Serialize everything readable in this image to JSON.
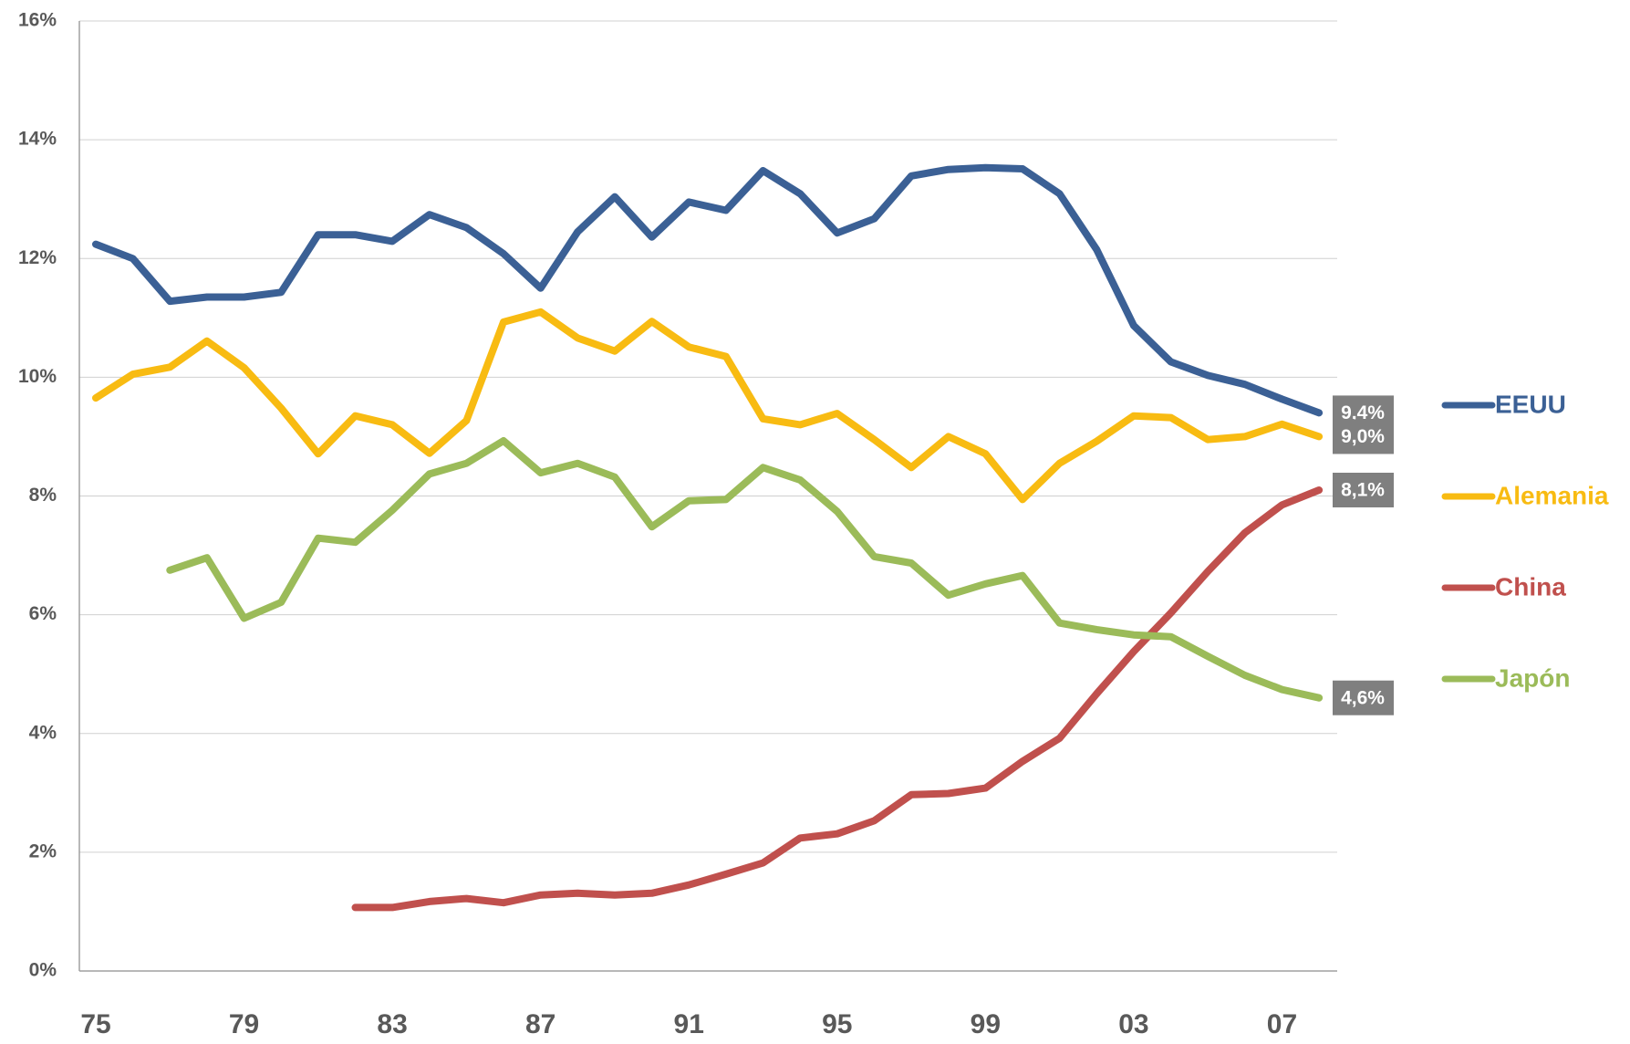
{
  "chart_data": {
    "type": "line",
    "categories": [
      "75",
      null,
      null,
      null,
      "79",
      null,
      null,
      null,
      "83",
      null,
      null,
      null,
      "87",
      null,
      null,
      null,
      "91",
      null,
      null,
      null,
      "95",
      null,
      null,
      null,
      "99",
      null,
      null,
      null,
      "03",
      null,
      null,
      null,
      "07",
      null
    ],
    "ylim": [
      0,
      16
    ],
    "yticks": [
      {
        "value": 0,
        "label": "0%"
      },
      {
        "value": 2,
        "label": "2%"
      },
      {
        "value": 4,
        "label": "4%"
      },
      {
        "value": 6,
        "label": "6%"
      },
      {
        "value": 8,
        "label": "8%"
      },
      {
        "value": 10,
        "label": "10%"
      },
      {
        "value": 12,
        "label": "12%"
      },
      {
        "value": 14,
        "label": "14%"
      },
      {
        "value": 16,
        "label": "16%"
      }
    ],
    "grid": true,
    "legend": "right",
    "series": [
      {
        "name": "EEUU",
        "color": "#3b6095",
        "values": [
          12.24,
          12.0,
          11.28,
          11.35,
          11.35,
          11.43,
          12.4,
          12.4,
          12.29,
          12.74,
          12.52,
          12.08,
          11.5,
          12.45,
          13.04,
          12.36,
          12.95,
          12.81,
          13.48,
          13.09,
          12.43,
          12.67,
          13.39,
          13.5,
          13.53,
          13.51,
          13.09,
          12.15,
          10.87,
          10.26,
          10.03,
          9.88,
          9.63,
          9.4
        ],
        "value_labels": [
          null,
          null,
          null,
          null,
          null,
          null,
          null,
          null,
          null,
          null,
          null,
          null,
          null,
          null,
          null,
          null,
          null,
          null,
          null,
          null,
          null,
          null,
          null,
          null,
          null,
          null,
          null,
          null,
          null,
          null,
          null,
          null,
          null,
          "9,4%"
        ]
      },
      {
        "name": "Alemania",
        "color": "#f8bb12",
        "values": [
          9.65,
          10.05,
          10.17,
          10.61,
          10.16,
          9.48,
          8.71,
          9.35,
          9.2,
          8.72,
          9.27,
          10.93,
          11.1,
          10.66,
          10.44,
          10.94,
          10.51,
          10.35,
          9.3,
          9.2,
          9.39,
          8.95,
          8.48,
          9.0,
          8.71,
          7.94,
          8.55,
          8.92,
          9.35,
          9.32,
          8.95,
          9.0,
          9.21,
          9.0
        ],
        "value_labels": [
          null,
          null,
          null,
          null,
          null,
          null,
          null,
          null,
          null,
          null,
          null,
          null,
          null,
          null,
          null,
          null,
          null,
          null,
          null,
          null,
          null,
          null,
          null,
          null,
          null,
          null,
          null,
          null,
          null,
          null,
          null,
          null,
          null,
          "9,0%"
        ]
      },
      {
        "name": "China",
        "color": "#c0504d",
        "values": [
          null,
          null,
          null,
          null,
          null,
          null,
          null,
          1.07,
          1.07,
          1.17,
          1.22,
          1.15,
          1.28,
          1.31,
          1.28,
          1.31,
          1.45,
          1.63,
          1.82,
          2.24,
          2.31,
          2.53,
          2.97,
          2.99,
          3.08,
          3.53,
          3.92,
          4.67,
          5.38,
          6.03,
          6.73,
          7.38,
          7.85,
          8.1
        ],
        "value_labels": [
          null,
          null,
          null,
          null,
          null,
          null,
          null,
          null,
          null,
          null,
          null,
          null,
          null,
          null,
          null,
          null,
          null,
          null,
          null,
          null,
          null,
          null,
          null,
          null,
          null,
          null,
          null,
          null,
          null,
          null,
          null,
          null,
          null,
          "8,1%"
        ]
      },
      {
        "name": "Japón",
        "color": "#9bbb59",
        "values": [
          null,
          null,
          6.75,
          6.96,
          5.94,
          6.21,
          7.29,
          7.22,
          7.76,
          8.37,
          8.55,
          8.93,
          8.39,
          8.55,
          8.32,
          7.48,
          7.92,
          7.94,
          8.48,
          8.27,
          7.74,
          6.98,
          6.87,
          6.33,
          6.52,
          6.66,
          5.86,
          5.75,
          5.66,
          5.63,
          5.3,
          4.98,
          4.74,
          4.6
        ],
        "value_labels": [
          null,
          null,
          null,
          null,
          null,
          null,
          null,
          null,
          null,
          null,
          null,
          null,
          null,
          null,
          null,
          null,
          null,
          null,
          null,
          null,
          null,
          null,
          null,
          null,
          null,
          null,
          null,
          null,
          null,
          null,
          null,
          null,
          null,
          "4,6%"
        ]
      }
    ]
  }
}
